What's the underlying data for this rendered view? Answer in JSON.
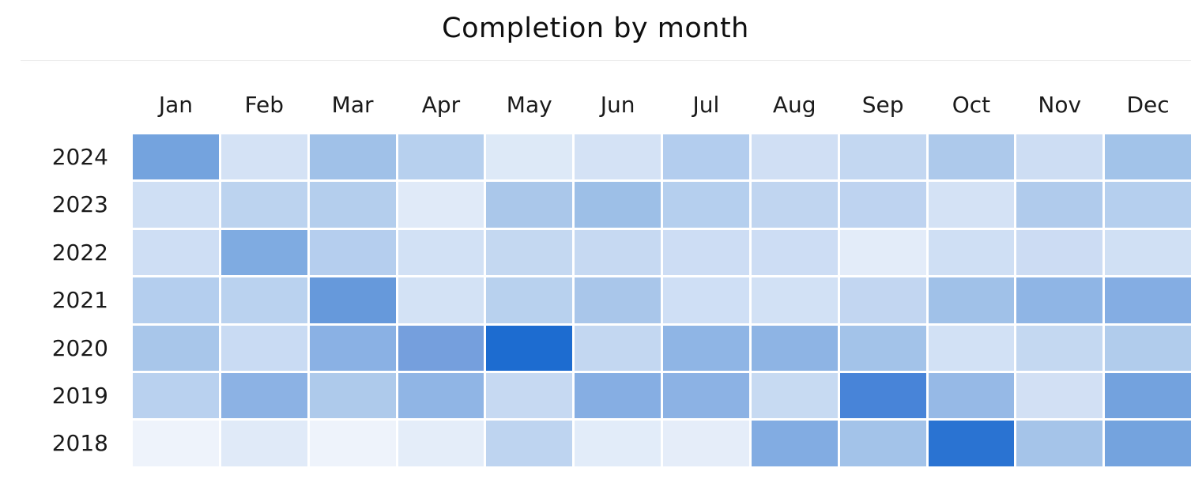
{
  "page": {
    "title": "Completion by month"
  },
  "chart_data": {
    "type": "heatmap",
    "title": "Completion by month",
    "x_labels": [
      "Jan",
      "Feb",
      "Mar",
      "Apr",
      "May",
      "Jun",
      "Jul",
      "Aug",
      "Sep",
      "Oct",
      "Nov",
      "Dec"
    ],
    "y_labels": [
      "2024",
      "2023",
      "2022",
      "2021",
      "2020",
      "2019",
      "2018"
    ],
    "legend_position": "none",
    "grid": "off",
    "colorscale": {
      "name": "blues",
      "low": "#eef3fb",
      "high": "#1d6cd0"
    },
    "cell_colors": [
      [
        "#74a3de",
        "#d4e2f5",
        "#a0c1e8",
        "#b7d0ee",
        "#dde9f7",
        "#d4e2f5",
        "#b3cdee",
        "#d0dff4",
        "#c3d7f1",
        "#adc9eb",
        "#cdddf3",
        "#a2c3e9"
      ],
      [
        "#cfdff4",
        "#bcd3ef",
        "#b4ceed",
        "#e0eaf8",
        "#aac7ea",
        "#9dbfe7",
        "#b5cfee",
        "#c0d5f0",
        "#bed3f0",
        "#d4e2f5",
        "#b0cbec",
        "#b5cfee"
      ],
      [
        "#cedef4",
        "#7fabe1",
        "#b5ceee",
        "#d2e1f5",
        "#c4d8f1",
        "#c6d9f2",
        "#cdddf4",
        "#cdddf4",
        "#e3ecf9",
        "#cfdff4",
        "#ccdcf3",
        "#d0e0f4"
      ],
      [
        "#b4ceee",
        "#bad2ef",
        "#6699db",
        "#d3e2f5",
        "#b8d1ee",
        "#a9c6ea",
        "#cfdff5",
        "#d2e1f5",
        "#c2d6f1",
        "#a0c1e8",
        "#8fb5e5",
        "#84ade3"
      ],
      [
        "#a8c6ea",
        "#c9dbf3",
        "#8ab1e4",
        "#759fdd",
        "#1d6cd0",
        "#c3d7f1",
        "#8fb5e5",
        "#8eb4e4",
        "#a3c3e9",
        "#d2e1f5",
        "#c4d8f1",
        "#b1ccec"
      ],
      [
        "#b9d1ef",
        "#8cb2e4",
        "#aecaeb",
        "#90b5e5",
        "#c6d9f2",
        "#86aee3",
        "#8cb2e4",
        "#c7daf2",
        "#4884d8",
        "#96b9e6",
        "#d2e0f4",
        "#73a2de"
      ],
      [
        "#eef3fb",
        "#e0eaf8",
        "#eef3fb",
        "#e4edf9",
        "#bed4f0",
        "#e2ecf9",
        "#e5edf9",
        "#82ace2",
        "#a3c3e9",
        "#2a73d2",
        "#a5c4e9",
        "#74a3de"
      ]
    ],
    "values_estimated_intensity_0_100": [
      [
        55,
        15,
        35,
        27,
        11,
        15,
        28,
        17,
        22,
        31,
        18,
        34
      ],
      [
        17,
        25,
        28,
        10,
        32,
        36,
        28,
        24,
        25,
        15,
        30,
        28
      ],
      [
        18,
        50,
        28,
        16,
        22,
        21,
        18,
        18,
        8,
        17,
        18,
        17
      ],
      [
        28,
        26,
        60,
        16,
        26,
        33,
        17,
        16,
        22,
        35,
        42,
        47
      ],
      [
        33,
        20,
        45,
        53,
        100,
        22,
        42,
        43,
        35,
        16,
        22,
        30
      ],
      [
        26,
        44,
        31,
        41,
        21,
        46,
        44,
        20,
        80,
        39,
        16,
        55
      ],
      [
        2,
        9,
        2,
        7,
        25,
        8,
        7,
        49,
        35,
        95,
        34,
        55
      ]
    ]
  }
}
